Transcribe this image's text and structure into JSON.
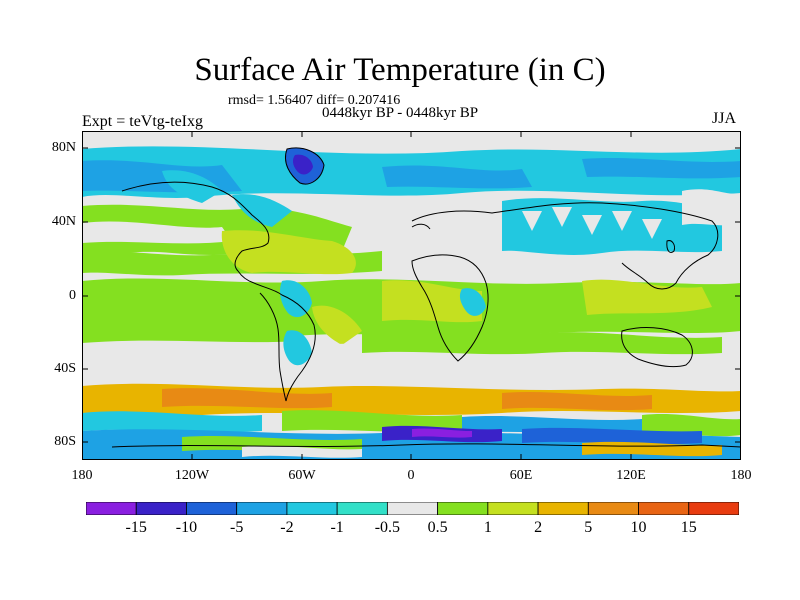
{
  "title": "Surface Air Temperature (in C)",
  "stats": "rmsd= 1.56407 diff= 0.207416",
  "period": "0448kyr BP - 0448kyr BP",
  "experiment": "Expt = teVtg-teIxg",
  "season": "JJA",
  "lat_ticks": [
    "80N",
    "40N",
    "0",
    "40S",
    "80S"
  ],
  "lon_ticks": [
    "180",
    "120W",
    "60W",
    "0",
    "60E",
    "120E",
    "180"
  ],
  "colorbar": {
    "labels": [
      "-15",
      "-10",
      "-5",
      "-2",
      "-1",
      "-0.5",
      "0.5",
      "1",
      "2",
      "5",
      "10",
      "15"
    ],
    "colors": [
      "#8a1fe0",
      "#3a22c8",
      "#1e62d8",
      "#1ea2e4",
      "#22c8e0",
      "#32e0c8",
      "#e8e8e8",
      "#84e020",
      "#c4e020",
      "#e8b400",
      "#e88a14",
      "#e86414",
      "#e83c10"
    ]
  },
  "palette": {
    "neutral": "#e8e8e8",
    "warm": "#c4e020",
    "green": "#84e020",
    "cool": "#22c8e0",
    "cold": "#1ea2e4",
    "colder": "#1e62d8",
    "coldest": "#3a22c8",
    "orange": "#e8b400",
    "deep_orange": "#e88a14",
    "purple": "#8a1fe0"
  }
}
